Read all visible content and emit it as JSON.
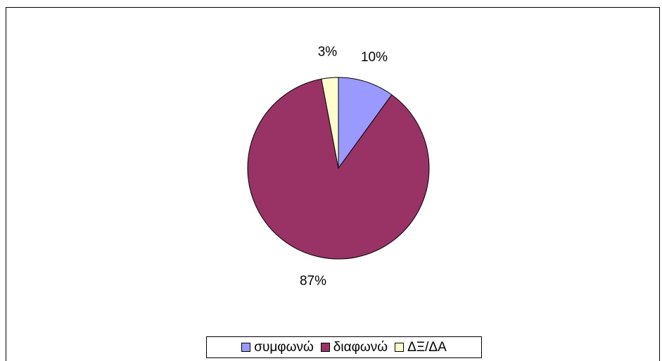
{
  "chart_data": {
    "type": "pie",
    "categories": [
      "συμφωνώ",
      "διαφωνώ",
      "ΔΞ/ΔΑ"
    ],
    "values": [
      10,
      87,
      3
    ],
    "value_labels": [
      "10%",
      "87%",
      "3%"
    ],
    "colors": [
      "#9999ff",
      "#993366",
      "#ffffcc"
    ],
    "legend": "bottom"
  }
}
